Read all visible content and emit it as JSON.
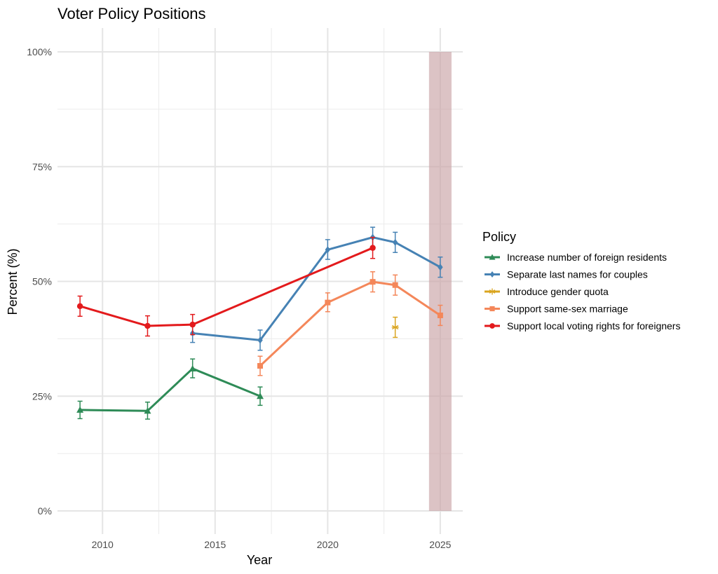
{
  "chart_data": {
    "type": "line",
    "title": "Voter Policy Positions",
    "xlabel": "Year",
    "ylabel": "Percent (%)",
    "xlim": [
      2008,
      2026
    ],
    "ylim": [
      0,
      100
    ],
    "x_ticks": [
      2010,
      2015,
      2020,
      2025
    ],
    "x_tick_labels": [
      "2010",
      "2015",
      "2020",
      "2025"
    ],
    "y_ticks": [
      0,
      25,
      50,
      75,
      100
    ],
    "y_tick_labels": [
      "0%",
      "25%",
      "50%",
      "75%",
      "100%"
    ],
    "grid": true,
    "legend": {
      "title": "Policy",
      "position": "right"
    },
    "highlight_band": {
      "x_from": 2024.5,
      "x_to": 2025.5,
      "color": "#c9a3a6"
    },
    "series": [
      {
        "name": "Increase number of foreign residents",
        "color": "#2e8b57",
        "marker": "triangle",
        "points": [
          {
            "x": 2009,
            "y": 22.0,
            "lo": 20.1,
            "hi": 23.9
          },
          {
            "x": 2012,
            "y": 21.8,
            "lo": 20.0,
            "hi": 23.7
          },
          {
            "x": 2014,
            "y": 31.0,
            "lo": 29.0,
            "hi": 33.1
          },
          {
            "x": 2017,
            "y": 25.0,
            "lo": 23.0,
            "hi": 27.0
          }
        ]
      },
      {
        "name": "Separate last names for couples",
        "color": "#4682b4",
        "marker": "diamond",
        "points": [
          {
            "x": 2014,
            "y": 38.7,
            "lo": 36.7,
            "hi": 40.8
          },
          {
            "x": 2017,
            "y": 37.2,
            "lo": 35.0,
            "hi": 39.4
          },
          {
            "x": 2020,
            "y": 56.9,
            "lo": 54.8,
            "hi": 59.1
          },
          {
            "x": 2022,
            "y": 59.6,
            "lo": 57.5,
            "hi": 61.8
          },
          {
            "x": 2023,
            "y": 58.5,
            "lo": 56.3,
            "hi": 60.7
          },
          {
            "x": 2025,
            "y": 53.1,
            "lo": 50.9,
            "hi": 55.3
          }
        ]
      },
      {
        "name": "Introduce gender quota",
        "color": "#daa520",
        "marker": "asterisk",
        "points": [
          {
            "x": 2023,
            "y": 40.0,
            "lo": 37.8,
            "hi": 42.2
          }
        ]
      },
      {
        "name": "Support same-sex marriage",
        "color": "#f4875a",
        "marker": "square",
        "points": [
          {
            "x": 2017,
            "y": 31.6,
            "lo": 29.5,
            "hi": 33.7
          },
          {
            "x": 2020,
            "y": 45.4,
            "lo": 43.4,
            "hi": 47.5
          },
          {
            "x": 2022,
            "y": 49.9,
            "lo": 47.7,
            "hi": 52.1
          },
          {
            "x": 2023,
            "y": 49.2,
            "lo": 47.0,
            "hi": 51.4
          },
          {
            "x": 2025,
            "y": 42.6,
            "lo": 40.4,
            "hi": 44.8
          }
        ]
      },
      {
        "name": "Support local voting rights for foreigners",
        "color": "#e31a1c",
        "marker": "circle",
        "points": [
          {
            "x": 2009,
            "y": 44.6,
            "lo": 42.4,
            "hi": 46.8
          },
          {
            "x": 2012,
            "y": 40.3,
            "lo": 38.1,
            "hi": 42.5
          },
          {
            "x": 2014,
            "y": 40.6,
            "lo": 38.4,
            "hi": 42.8
          },
          {
            "x": 2022,
            "y": 57.3,
            "lo": 55.0,
            "hi": 59.6
          }
        ]
      }
    ]
  }
}
